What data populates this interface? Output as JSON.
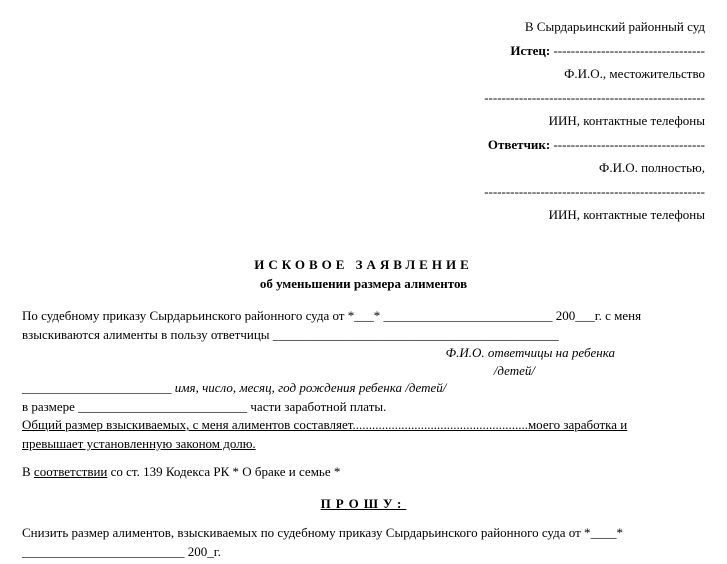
{
  "header": {
    "court": "В Сырдарьинский районный суд",
    "plaintiff_label": "Истец:",
    "dashes": " -----------------------------------",
    "fio_place": "Ф.И.О., местожительство",
    "dashes_long": "---------------------------------------------------",
    "iin_phones": "ИИН, контактные телефоны",
    "defendant_label": "Ответчик:",
    "fio_full": "Ф.И.О. полностью,"
  },
  "title": {
    "line1": "ИСКОВОЕ  ЗАЯВЛЕНИЕ",
    "line2": "об уменьшении размера алиментов"
  },
  "body": {
    "line1_a": "По судебному приказу Сырдарьинского районного суда от *___*",
    "line1_blank": " __________________________",
    "line1_year": " 200___г. с меня",
    "line2_a": "взыскиваются алименты в пользу ответчицы",
    "line2_blank": " ____________________________________________",
    "note1": "Ф.И.О. ответчицы на ребенка",
    "note2": "/детей/",
    "line3_blank": "_______________________ ",
    "line3_italic": "имя, число, месяц, год рождения ребенка /детей/",
    "line4_a": "в размере",
    "line4_blank": " __________________________ ",
    "line4_b": "части заработной платы.",
    "line5": "Общий размер взыскиваемых, с меня алиментов составляет",
    "line5_dots": "......................................................",
    "line5_b": "моего заработка и",
    "line6": "превышает установленную законом долю.",
    "line7_a": "В ",
    "line7_link": "соответствии",
    "line7_b": " со ст. 139 Кодекса РК  * О браке и семье *"
  },
  "section": {
    "title": "ПРОШУ:"
  },
  "request": {
    "line1_a": "Снизить размер алиментов, взыскиваемых  по судебному приказу Сырдарьинского районного  суда от *____*",
    "line2_blank": "_________________________",
    "line2_year": " 200_г."
  },
  "colors": {
    "text": "#000000",
    "background": "#ffffff"
  }
}
